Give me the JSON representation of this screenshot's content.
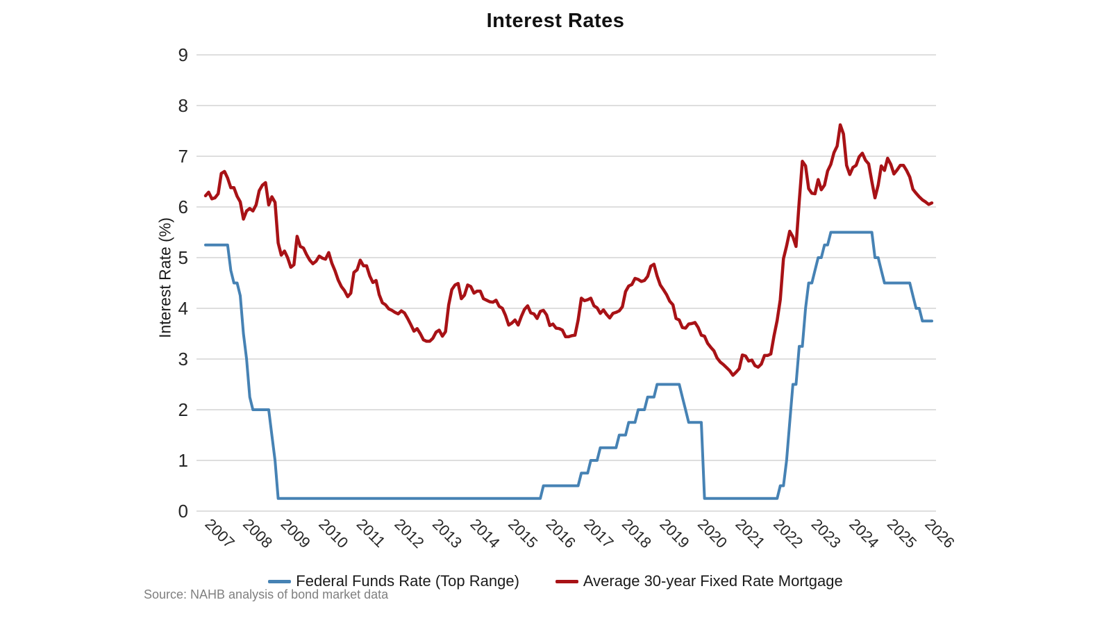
{
  "source_note": "Source: NAHB analysis of bond market data",
  "colors": {
    "grid": "#d9d9d9",
    "axis_text": "#262626",
    "title_text": "#111111",
    "source_text": "#7f7f7f"
  },
  "chart_data": {
    "type": "line",
    "title": "Interest Rates",
    "xlabel": "",
    "ylabel": "Interest Rate (%)",
    "ylim": [
      0,
      9
    ],
    "grid": "horizontal",
    "legend_position": "bottom",
    "x_frequency": "monthly",
    "x_start": "2007-01",
    "x_end": "2026-03",
    "y_ticks": [
      0,
      1,
      2,
      3,
      4,
      5,
      6,
      7,
      8,
      9
    ],
    "x_tick_labels": [
      "2007",
      "2008",
      "2009",
      "2010",
      "2011",
      "2012",
      "2013",
      "2014",
      "2015",
      "2016",
      "2017",
      "2018",
      "2019",
      "2020",
      "2021",
      "2022",
      "2023",
      "2024",
      "2025",
      "2026"
    ],
    "series": [
      {
        "name": "Federal Funds Rate (Top Range)",
        "color": "#4682b4",
        "stroke_width": 4,
        "values": [
          5.25,
          5.25,
          5.25,
          5.25,
          5.25,
          5.25,
          5.25,
          5.25,
          4.75,
          4.5,
          4.5,
          4.25,
          3.5,
          3.0,
          2.25,
          2.0,
          2.0,
          2.0,
          2.0,
          2.0,
          2.0,
          1.5,
          1.0,
          0.25,
          0.25,
          0.25,
          0.25,
          0.25,
          0.25,
          0.25,
          0.25,
          0.25,
          0.25,
          0.25,
          0.25,
          0.25,
          0.25,
          0.25,
          0.25,
          0.25,
          0.25,
          0.25,
          0.25,
          0.25,
          0.25,
          0.25,
          0.25,
          0.25,
          0.25,
          0.25,
          0.25,
          0.25,
          0.25,
          0.25,
          0.25,
          0.25,
          0.25,
          0.25,
          0.25,
          0.25,
          0.25,
          0.25,
          0.25,
          0.25,
          0.25,
          0.25,
          0.25,
          0.25,
          0.25,
          0.25,
          0.25,
          0.25,
          0.25,
          0.25,
          0.25,
          0.25,
          0.25,
          0.25,
          0.25,
          0.25,
          0.25,
          0.25,
          0.25,
          0.25,
          0.25,
          0.25,
          0.25,
          0.25,
          0.25,
          0.25,
          0.25,
          0.25,
          0.25,
          0.25,
          0.25,
          0.25,
          0.25,
          0.25,
          0.25,
          0.25,
          0.25,
          0.25,
          0.25,
          0.25,
          0.25,
          0.25,
          0.25,
          0.5,
          0.5,
          0.5,
          0.5,
          0.5,
          0.5,
          0.5,
          0.5,
          0.5,
          0.5,
          0.5,
          0.5,
          0.75,
          0.75,
          0.75,
          1.0,
          1.0,
          1.0,
          1.25,
          1.25,
          1.25,
          1.25,
          1.25,
          1.25,
          1.5,
          1.5,
          1.5,
          1.75,
          1.75,
          1.75,
          2.0,
          2.0,
          2.0,
          2.25,
          2.25,
          2.25,
          2.5,
          2.5,
          2.5,
          2.5,
          2.5,
          2.5,
          2.5,
          2.5,
          2.25,
          2.0,
          1.75,
          1.75,
          1.75,
          1.75,
          1.75,
          0.25,
          0.25,
          0.25,
          0.25,
          0.25,
          0.25,
          0.25,
          0.25,
          0.25,
          0.25,
          0.25,
          0.25,
          0.25,
          0.25,
          0.25,
          0.25,
          0.25,
          0.25,
          0.25,
          0.25,
          0.25,
          0.25,
          0.25,
          0.25,
          0.5,
          0.5,
          1.0,
          1.75,
          2.5,
          2.5,
          3.25,
          3.25,
          4.0,
          4.5,
          4.5,
          4.75,
          5.0,
          5.0,
          5.25,
          5.25,
          5.5,
          5.5,
          5.5,
          5.5,
          5.5,
          5.5,
          5.5,
          5.5,
          5.5,
          5.5,
          5.5,
          5.5,
          5.5,
          5.5,
          5.0,
          5.0,
          4.75,
          4.5,
          4.5,
          4.5,
          4.5,
          4.5,
          4.5,
          4.5,
          4.5,
          4.5,
          4.25,
          4.0,
          4.0,
          3.75,
          3.75,
          3.75,
          3.75
        ]
      },
      {
        "name": "Average 30-year Fixed Rate Mortgage",
        "color": "#a81216",
        "stroke_width": 4.5,
        "values": [
          6.22,
          6.29,
          6.16,
          6.18,
          6.26,
          6.66,
          6.7,
          6.57,
          6.38,
          6.38,
          6.21,
          6.1,
          5.76,
          5.92,
          5.97,
          5.92,
          6.04,
          6.32,
          6.43,
          6.48,
          6.04,
          6.2,
          6.09,
          5.29,
          5.05,
          5.13,
          5.0,
          4.81,
          4.86,
          5.42,
          5.22,
          5.19,
          5.06,
          4.95,
          4.88,
          4.93,
          5.03,
          4.99,
          4.97,
          5.1,
          4.89,
          4.74,
          4.56,
          4.43,
          4.35,
          4.23,
          4.3,
          4.71,
          4.76,
          4.95,
          4.84,
          4.84,
          4.64,
          4.51,
          4.55,
          4.27,
          4.11,
          4.07,
          3.99,
          3.96,
          3.92,
          3.89,
          3.95,
          3.91,
          3.8,
          3.68,
          3.55,
          3.6,
          3.5,
          3.38,
          3.35,
          3.35,
          3.41,
          3.53,
          3.57,
          3.45,
          3.54,
          4.07,
          4.37,
          4.46,
          4.49,
          4.19,
          4.26,
          4.46,
          4.43,
          4.3,
          4.34,
          4.34,
          4.19,
          4.16,
          4.13,
          4.12,
          4.16,
          4.04,
          4.0,
          3.86,
          3.67,
          3.71,
          3.77,
          3.67,
          3.84,
          3.98,
          4.05,
          3.91,
          3.89,
          3.8,
          3.94,
          3.96,
          3.87,
          3.66,
          3.69,
          3.61,
          3.6,
          3.57,
          3.44,
          3.44,
          3.46,
          3.47,
          3.77,
          4.2,
          4.15,
          4.17,
          4.2,
          4.05,
          4.01,
          3.9,
          3.97,
          3.88,
          3.81,
          3.9,
          3.92,
          3.95,
          4.03,
          4.33,
          4.44,
          4.47,
          4.59,
          4.57,
          4.53,
          4.55,
          4.63,
          4.83,
          4.87,
          4.64,
          4.46,
          4.37,
          4.27,
          4.14,
          4.07,
          3.8,
          3.77,
          3.62,
          3.61,
          3.69,
          3.7,
          3.72,
          3.62,
          3.47,
          3.45,
          3.31,
          3.23,
          3.16,
          3.02,
          2.94,
          2.89,
          2.83,
          2.77,
          2.68,
          2.74,
          2.81,
          3.08,
          3.06,
          2.96,
          2.98,
          2.87,
          2.84,
          2.9,
          3.07,
          3.07,
          3.1,
          3.45,
          3.76,
          4.17,
          4.98,
          5.23,
          5.52,
          5.41,
          5.22,
          6.11,
          6.9,
          6.81,
          6.36,
          6.27,
          6.26,
          6.54,
          6.34,
          6.43,
          6.71,
          6.84,
          7.07,
          7.2,
          7.62,
          7.44,
          6.82,
          6.64,
          6.78,
          6.82,
          6.99,
          7.06,
          6.92,
          6.85,
          6.5,
          6.18,
          6.43,
          6.81,
          6.72,
          6.96,
          6.84,
          6.65,
          6.73,
          6.82,
          6.82,
          6.72,
          6.59,
          6.35,
          6.27,
          6.2,
          6.14,
          6.1,
          6.05,
          6.08
        ]
      }
    ]
  }
}
